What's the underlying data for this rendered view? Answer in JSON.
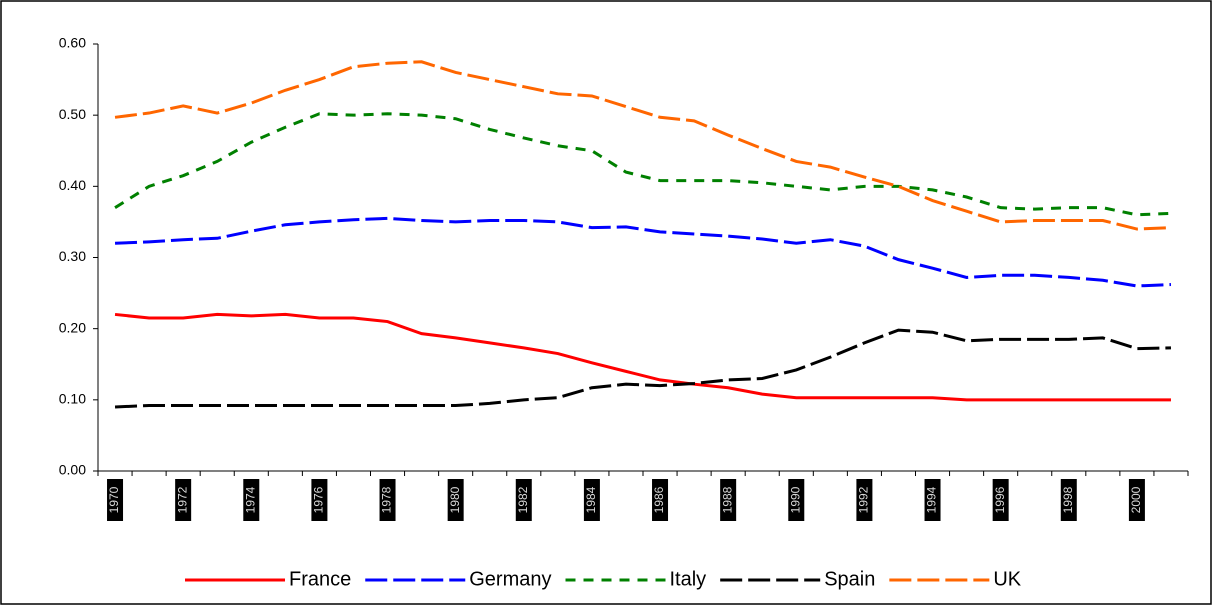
{
  "chart_data": {
    "type": "line",
    "categories": [
      "1970",
      null,
      "1972",
      null,
      "1974",
      null,
      "1976",
      null,
      "1978",
      null,
      "1980",
      null,
      "1982",
      null,
      "1984",
      null,
      "1986",
      null,
      "1988",
      null,
      "1990",
      null,
      "1992",
      null,
      "1994",
      null,
      "1996",
      null,
      "1998",
      null,
      "2000",
      null
    ],
    "ylim": [
      0,
      0.6
    ],
    "yticks": [
      {
        "value": 0,
        "label": "0.00"
      },
      {
        "value": 0.1,
        "label": "0.10"
      },
      {
        "value": 0.2,
        "label": "0.20"
      },
      {
        "value": 0.3,
        "label": "0.30"
      },
      {
        "value": 0.4,
        "label": "0.40"
      },
      {
        "value": 0.5,
        "label": "0.50"
      },
      {
        "value": 0.6,
        "label": "0.60"
      }
    ],
    "legend": "bottom",
    "series": [
      {
        "name": "France",
        "color": "#ff0000",
        "style": "solid",
        "values": [
          0.22,
          0.215,
          0.215,
          0.22,
          0.218,
          0.22,
          0.215,
          0.215,
          0.21,
          0.193,
          0.187,
          0.18,
          0.173,
          0.165,
          0.152,
          0.14,
          0.128,
          0.122,
          0.117,
          0.108,
          0.103,
          0.103,
          0.103,
          0.103,
          0.103,
          0.1,
          0.1,
          0.1,
          0.1,
          0.1,
          0.1,
          0.1
        ]
      },
      {
        "name": "Germany",
        "color": "#0000ff",
        "style": "longdash",
        "values": [
          0.32,
          0.322,
          0.325,
          0.327,
          0.337,
          0.346,
          0.35,
          0.353,
          0.355,
          0.352,
          0.35,
          0.352,
          0.352,
          0.35,
          0.342,
          0.343,
          0.336,
          0.333,
          0.33,
          0.326,
          0.32,
          0.325,
          0.316,
          0.297,
          0.285,
          0.272,
          0.275,
          0.275,
          0.272,
          0.268,
          0.26,
          0.262
        ]
      },
      {
        "name": "Italy",
        "color": "#008000",
        "style": "dashed",
        "values": [
          0.37,
          0.4,
          0.415,
          0.435,
          0.462,
          0.483,
          0.502,
          0.5,
          0.502,
          0.5,
          0.495,
          0.48,
          0.468,
          0.457,
          0.45,
          0.42,
          0.408,
          0.408,
          0.408,
          0.405,
          0.4,
          0.395,
          0.4,
          0.4,
          0.395,
          0.385,
          0.37,
          0.368,
          0.37,
          0.37,
          0.36,
          0.362
        ]
      },
      {
        "name": "Spain",
        "color": "#000000",
        "style": "longdash",
        "values": [
          0.09,
          0.092,
          0.092,
          0.092,
          0.092,
          0.092,
          0.092,
          0.092,
          0.092,
          0.092,
          0.092,
          0.095,
          0.1,
          0.103,
          0.117,
          0.122,
          0.12,
          0.123,
          0.128,
          0.13,
          0.142,
          0.16,
          0.18,
          0.198,
          0.195,
          0.183,
          0.185,
          0.185,
          0.185,
          0.187,
          0.172,
          0.173
        ]
      },
      {
        "name": "UK",
        "color": "#ff6600",
        "style": "longdash",
        "values": [
          0.497,
          0.503,
          0.513,
          0.503,
          0.517,
          0.535,
          0.55,
          0.568,
          0.573,
          0.575,
          0.56,
          0.55,
          0.54,
          0.53,
          0.527,
          0.512,
          0.497,
          0.492,
          0.472,
          0.453,
          0.435,
          0.427,
          0.413,
          0.4,
          0.38,
          0.365,
          0.35,
          0.352,
          0.352,
          0.352,
          0.34,
          0.342
        ]
      }
    ]
  }
}
